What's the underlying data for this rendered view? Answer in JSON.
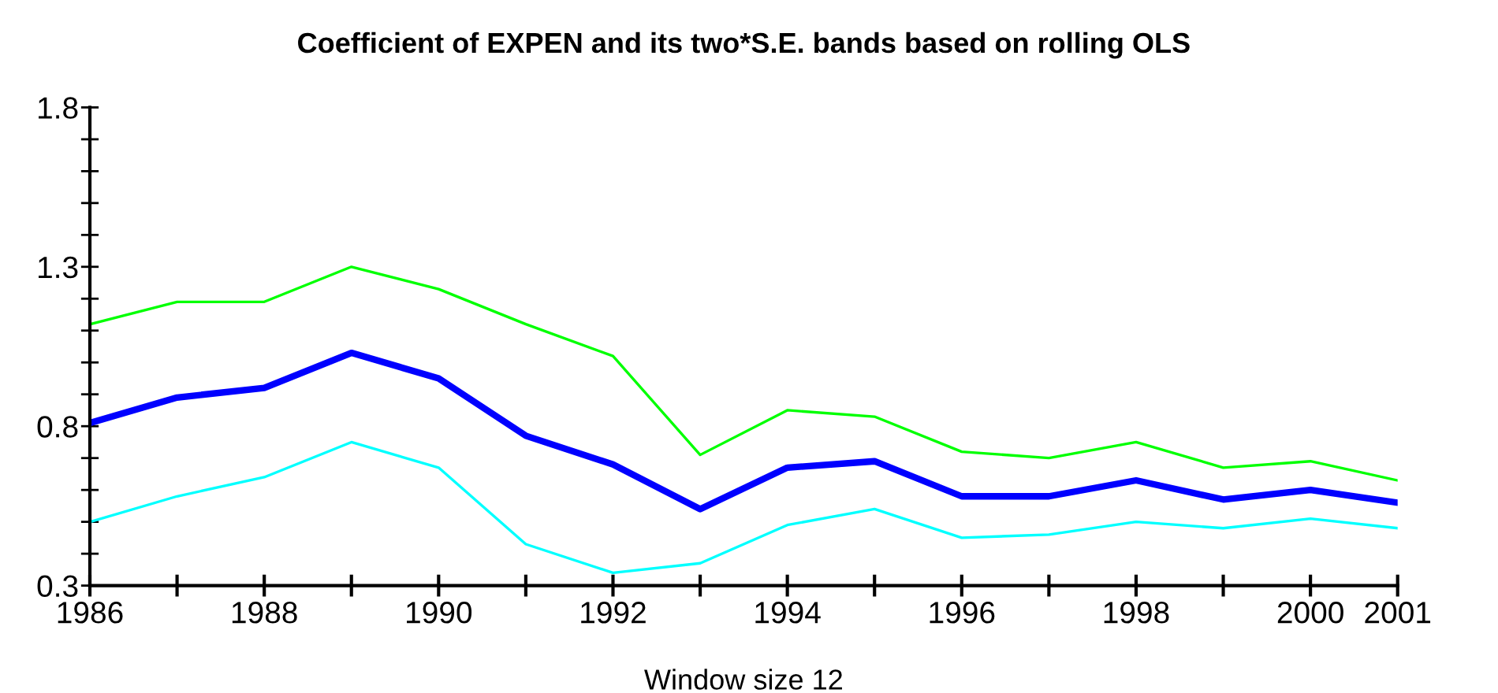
{
  "chart_data": {
    "type": "line",
    "title": "Coefficient of EXPEN and its two*S.E. bands based on rolling OLS",
    "xlabel": "Window size 12",
    "x": [
      1986,
      1987,
      1988,
      1989,
      1990,
      1991,
      1992,
      1993,
      1994,
      1995,
      1996,
      1997,
      1998,
      1999,
      2000,
      2001
    ],
    "series": [
      {
        "color": "#00ff00",
        "values": [
          1.12,
          1.19,
          1.19,
          1.3,
          1.23,
          1.12,
          1.02,
          0.71,
          0.85,
          0.83,
          0.72,
          0.7,
          0.75,
          0.67,
          0.69,
          0.63
        ]
      },
      {
        "color": "#0000ff",
        "values": [
          0.81,
          0.89,
          0.92,
          1.03,
          0.95,
          0.77,
          0.68,
          0.54,
          0.67,
          0.69,
          0.58,
          0.58,
          0.63,
          0.57,
          0.6,
          0.56
        ]
      },
      {
        "color": "#00ffff",
        "values": [
          0.5,
          0.58,
          0.64,
          0.75,
          0.67,
          0.43,
          0.34,
          0.37,
          0.49,
          0.54,
          0.45,
          0.46,
          0.5,
          0.48,
          0.51,
          0.48
        ]
      }
    ],
    "xlim": [
      1986,
      2001
    ],
    "xticks": [
      1986,
      {
        "value": 1987,
        "label": null
      },
      1988,
      {
        "value": 1989,
        "label": null
      },
      1990,
      {
        "value": 1991,
        "label": null
      },
      1992,
      {
        "value": 1993,
        "label": null
      },
      1994,
      {
        "value": 1995,
        "label": null
      },
      1996,
      {
        "value": 1997,
        "label": null
      },
      1998,
      {
        "value": 1999,
        "label": null
      },
      2000,
      2001
    ],
    "ylim": [
      0.3,
      1.8
    ],
    "yticks": [
      0.3,
      {
        "value": 0.4,
        "label": null
      },
      {
        "value": 0.5,
        "label": null
      },
      {
        "value": 0.6,
        "label": null
      },
      {
        "value": 0.7,
        "label": null
      },
      0.8,
      {
        "value": 0.9,
        "label": null
      },
      {
        "value": 1.0,
        "label": null
      },
      {
        "value": 1.1,
        "label": null
      },
      {
        "value": 1.2,
        "label": null
      },
      1.3,
      {
        "value": 1.4,
        "label": null
      },
      {
        "value": 1.5,
        "label": null
      },
      {
        "value": 1.6,
        "label": null
      },
      {
        "value": 1.7,
        "label": null
      },
      1.8
    ],
    "grid": false,
    "marker": "none",
    "line_style": "solid"
  }
}
